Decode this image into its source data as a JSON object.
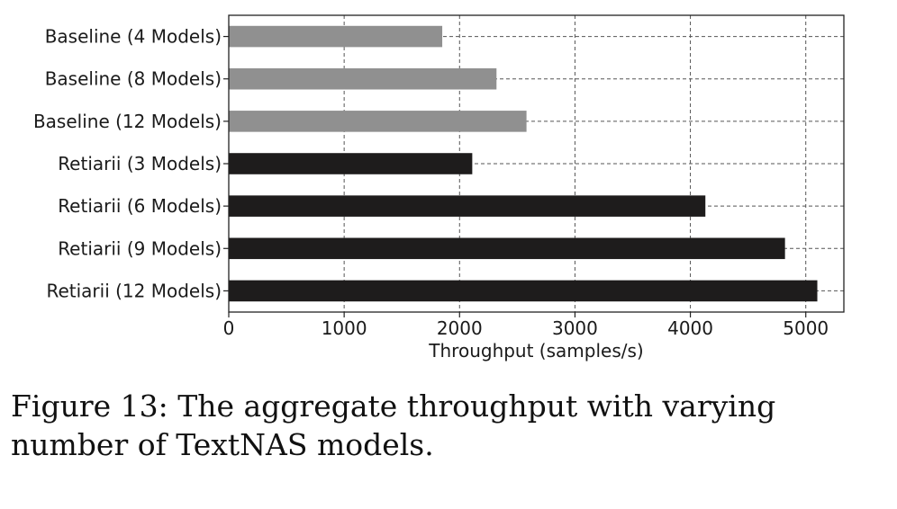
{
  "chart_data": {
    "type": "bar",
    "orientation": "horizontal",
    "categories": [
      "Baseline (4 Models)",
      "Baseline (8 Models)",
      "Baseline (12 Models)",
      "Retiarii (3 Models)",
      "Retiarii (6 Models)",
      "Retiarii (9 Models)",
      "Retiarii (12 Models)"
    ],
    "values": [
      1850,
      2320,
      2580,
      2110,
      4130,
      4820,
      5100
    ],
    "bar_colors": [
      "#909090",
      "#909090",
      "#909090",
      "#1e1c1c",
      "#1e1c1c",
      "#1e1c1c",
      "#1e1c1c"
    ],
    "xlabel": "Throughput (samples/s)",
    "ylabel": "",
    "xlim": [
      0,
      5330
    ],
    "xticks": [
      0,
      1000,
      2000,
      3000,
      4000,
      5000
    ],
    "grid": true,
    "grid_style": "dashed"
  },
  "caption": "Figure 13: The aggregate throughput with varying number of TextNAS models."
}
